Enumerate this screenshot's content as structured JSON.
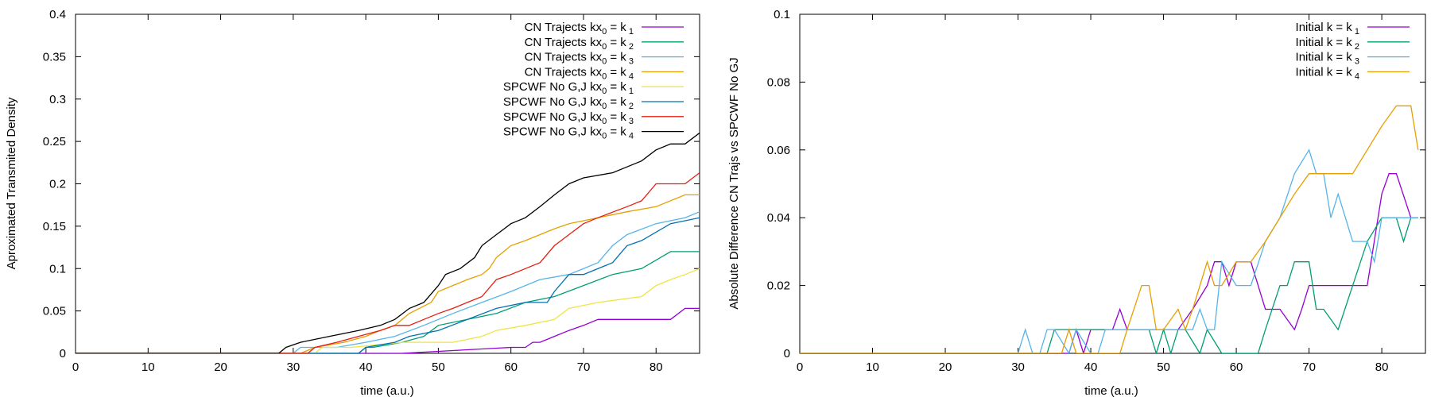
{
  "chart_data": [
    {
      "type": "line",
      "title": "",
      "xlabel": "time (a.u.)",
      "ylabel": "Aproximated Transmited Density",
      "xlim": [
        0,
        86
      ],
      "ylim": [
        0,
        0.4
      ],
      "xticks": [
        0,
        10,
        20,
        30,
        40,
        50,
        60,
        70,
        80
      ],
      "yticks": [
        0,
        0.05,
        0.1,
        0.15,
        0.2,
        0.25,
        0.3,
        0.35,
        0.4
      ],
      "grid": false,
      "legend_position": "top-right",
      "series": [
        {
          "name": "CN Trajects kx0 = k1",
          "label_main": "CN Trajects kx",
          "label_sub1": "0",
          "label_mid": " = k",
          "label_sub2": "1",
          "color": "#9400d3",
          "x": [
            0,
            45,
            60,
            62,
            63,
            64,
            66,
            68,
            70,
            72,
            82,
            84,
            86
          ],
          "y": [
            0,
            0,
            0.007,
            0.007,
            0.013,
            0.013,
            0.02,
            0.027,
            0.033,
            0.04,
            0.04,
            0.053,
            0.053
          ]
        },
        {
          "name": "CN Trajects kx0 = k2",
          "label_main": "CN Trajects kx",
          "label_sub1": "0",
          "label_mid": " = k",
          "label_sub2": "2",
          "color": "#009e73",
          "x": [
            0,
            39,
            40,
            41,
            45,
            48,
            50,
            54,
            58,
            62,
            66,
            70,
            74,
            78,
            82,
            86
          ],
          "y": [
            0,
            0,
            0.007,
            0.007,
            0.013,
            0.02,
            0.033,
            0.04,
            0.047,
            0.06,
            0.067,
            0.08,
            0.093,
            0.1,
            0.12,
            0.12
          ]
        },
        {
          "name": "CN Trajects kx0 = k3",
          "label_main": "CN Trajects kx",
          "label_sub1": "0",
          "label_mid": " = k",
          "label_sub2": "3",
          "color": "#56b4e9",
          "x": [
            0,
            30,
            31,
            36,
            40,
            44,
            48,
            52,
            56,
            60,
            64,
            68,
            72,
            74,
            76,
            80,
            84,
            86
          ],
          "y": [
            0,
            0,
            0.007,
            0.007,
            0.013,
            0.02,
            0.033,
            0.047,
            0.06,
            0.073,
            0.087,
            0.093,
            0.107,
            0.127,
            0.14,
            0.153,
            0.16,
            0.167
          ]
        },
        {
          "name": "CN Trajects kx0 = k4",
          "label_main": "CN Trajects kx",
          "label_sub1": "0",
          "label_mid": " = k",
          "label_sub2": "4",
          "color": "#e69f00",
          "x": [
            0,
            31,
            33,
            37,
            40,
            42,
            44,
            46,
            49,
            50,
            52,
            54,
            56,
            57,
            58,
            60,
            62,
            64,
            66,
            68,
            72,
            76,
            80,
            84,
            86
          ],
          "y": [
            0,
            0,
            0.007,
            0.013,
            0.02,
            0.027,
            0.033,
            0.047,
            0.06,
            0.073,
            0.08,
            0.087,
            0.093,
            0.1,
            0.113,
            0.127,
            0.133,
            0.14,
            0.147,
            0.153,
            0.16,
            0.167,
            0.173,
            0.187,
            0.187
          ]
        },
        {
          "name": "SPCWF No G,J kx0 = k1",
          "label_main": "SPCWF No G,J kx",
          "label_sub1": "0",
          "label_mid": " = k",
          "label_sub2": "1",
          "color": "#f0e442",
          "x": [
            0,
            33,
            34,
            38,
            45,
            52,
            56,
            58,
            62,
            66,
            68,
            72,
            78,
            80,
            82,
            84,
            86
          ],
          "y": [
            0,
            0,
            0.007,
            0.007,
            0.013,
            0.013,
            0.02,
            0.027,
            0.033,
            0.04,
            0.053,
            0.06,
            0.067,
            0.08,
            0.087,
            0.093,
            0.1
          ]
        },
        {
          "name": "SPCWF No G,J kx0 = k2",
          "label_main": "SPCWF No G,J kx",
          "label_sub1": "0",
          "label_mid": " = k",
          "label_sub2": "2",
          "color": "#0072b2",
          "x": [
            0,
            39,
            40,
            44,
            46,
            50,
            54,
            58,
            62,
            65,
            66,
            68,
            70,
            74,
            76,
            78,
            82,
            86
          ],
          "y": [
            0,
            0,
            0.007,
            0.013,
            0.02,
            0.027,
            0.04,
            0.053,
            0.06,
            0.06,
            0.073,
            0.093,
            0.093,
            0.107,
            0.127,
            0.133,
            0.153,
            0.16
          ]
        },
        {
          "name": "SPCWF No G,J kx0 = k3",
          "label_main": "SPCWF No G,J kx",
          "label_sub1": "0",
          "label_mid": " = k",
          "label_sub2": "3",
          "color": "#e51e10",
          "x": [
            0,
            32,
            33,
            36,
            39,
            42,
            44,
            46,
            48,
            50,
            52,
            54,
            56,
            58,
            60,
            64,
            66,
            68,
            70,
            72,
            76,
            78,
            80,
            84,
            86
          ],
          "y": [
            0,
            0,
            0.007,
            0.013,
            0.02,
            0.027,
            0.033,
            0.033,
            0.04,
            0.047,
            0.053,
            0.06,
            0.067,
            0.087,
            0.093,
            0.107,
            0.127,
            0.14,
            0.153,
            0.16,
            0.173,
            0.18,
            0.2,
            0.2,
            0.213
          ]
        },
        {
          "name": "SPCWF No G,J kx0 = k4",
          "label_main": "SPCWF No G,J kx",
          "label_sub1": "0",
          "label_mid": " = k",
          "label_sub2": "4",
          "color": "#000000",
          "x": [
            0,
            28,
            29,
            31,
            35,
            39,
            42,
            44,
            46,
            48,
            50,
            51,
            53,
            55,
            56,
            58,
            60,
            62,
            64,
            66,
            68,
            70,
            74,
            76,
            78,
            80,
            82,
            84,
            86
          ],
          "y": [
            0,
            0,
            0.007,
            0.013,
            0.02,
            0.027,
            0.033,
            0.04,
            0.053,
            0.06,
            0.08,
            0.093,
            0.1,
            0.113,
            0.127,
            0.14,
            0.153,
            0.16,
            0.173,
            0.187,
            0.2,
            0.207,
            0.213,
            0.22,
            0.227,
            0.24,
            0.247,
            0.247,
            0.26
          ]
        }
      ]
    },
    {
      "type": "line",
      "title": "",
      "xlabel": "time (a.u.)",
      "ylabel": "Absolute Difference CN Trajs vs SPCWF No GJ",
      "xlim": [
        0,
        86
      ],
      "ylim": [
        0,
        0.1
      ],
      "xticks": [
        0,
        10,
        20,
        30,
        40,
        50,
        60,
        70,
        80
      ],
      "yticks": [
        0,
        0.02,
        0.04,
        0.06,
        0.08,
        0.1
      ],
      "grid": false,
      "legend_position": "top-right",
      "series": [
        {
          "name": "Initial k = k1",
          "label_main": "Initial k = k",
          "label_sub2": "1",
          "color": "#9400d3",
          "x": [
            0,
            37,
            38,
            39,
            40,
            41,
            43,
            44,
            45,
            46,
            48,
            52,
            54,
            56,
            57,
            58,
            59,
            60,
            62,
            64,
            66,
            68,
            69,
            70,
            72,
            74,
            76,
            78,
            80,
            81,
            82,
            84,
            85
          ],
          "y": [
            0,
            0,
            0.007,
            0,
            0.007,
            0.007,
            0.007,
            0.013,
            0.007,
            0.007,
            0.007,
            0.007,
            0.013,
            0.02,
            0.027,
            0.027,
            0.02,
            0.027,
            0.027,
            0.013,
            0.013,
            0.007,
            0.013,
            0.02,
            0.02,
            0.02,
            0.02,
            0.02,
            0.047,
            0.053,
            0.053,
            0.04,
            0.04
          ]
        },
        {
          "name": "Initial k = k2",
          "label_main": "Initial k = k",
          "label_sub2": "2",
          "color": "#009e73",
          "x": [
            0,
            34,
            35,
            40,
            44,
            46,
            48,
            49,
            50,
            51,
            52,
            53,
            55,
            56,
            58,
            60,
            62,
            63,
            64,
            66,
            67,
            68,
            69,
            70,
            71,
            72,
            74,
            76,
            78,
            80,
            82,
            83,
            84,
            85
          ],
          "y": [
            0,
            0,
            0.007,
            0.007,
            0.007,
            0.007,
            0.007,
            0,
            0.007,
            0,
            0.007,
            0.007,
            0,
            0.007,
            0,
            0,
            0,
            0,
            0.007,
            0.02,
            0.02,
            0.027,
            0.027,
            0.027,
            0.013,
            0.013,
            0.007,
            0.02,
            0.033,
            0.04,
            0.04,
            0.033,
            0.04,
            0.04
          ]
        },
        {
          "name": "Initial k = k3",
          "label_main": "Initial k = k",
          "label_sub2": "3",
          "color": "#56b4e9",
          "x": [
            0,
            30,
            31,
            32,
            33,
            34,
            35,
            37,
            38,
            40,
            41,
            42,
            46,
            50,
            54,
            55,
            56,
            57,
            58,
            60,
            62,
            64,
            66,
            68,
            70,
            71,
            72,
            73,
            74,
            76,
            78,
            79,
            80,
            82,
            84,
            85
          ],
          "y": [
            0,
            0,
            0.007,
            0,
            0,
            0.007,
            0.007,
            0,
            0.007,
            0,
            0,
            0.007,
            0.007,
            0.007,
            0.007,
            0.013,
            0.007,
            0.007,
            0.027,
            0.02,
            0.02,
            0.033,
            0.04,
            0.053,
            0.06,
            0.053,
            0.053,
            0.04,
            0.047,
            0.033,
            0.033,
            0.027,
            0.04,
            0.04,
            0.04,
            0.04
          ]
        },
        {
          "name": "Initial k = k4",
          "label_main": "Initial k = k",
          "label_sub2": "4",
          "color": "#e69f00",
          "x": [
            0,
            36,
            37,
            38,
            39,
            44,
            45,
            47,
            48,
            49,
            50,
            52,
            53,
            54,
            56,
            57,
            58,
            60,
            62,
            64,
            66,
            68,
            70,
            74,
            76,
            78,
            80,
            82,
            84,
            85
          ],
          "y": [
            0,
            0,
            0.007,
            0,
            0,
            0,
            0.007,
            0.02,
            0.02,
            0.007,
            0.007,
            0.013,
            0.007,
            0.013,
            0.027,
            0.02,
            0.02,
            0.027,
            0.027,
            0.033,
            0.04,
            0.047,
            0.053,
            0.053,
            0.053,
            0.06,
            0.067,
            0.073,
            0.073,
            0.06
          ]
        }
      ]
    }
  ]
}
